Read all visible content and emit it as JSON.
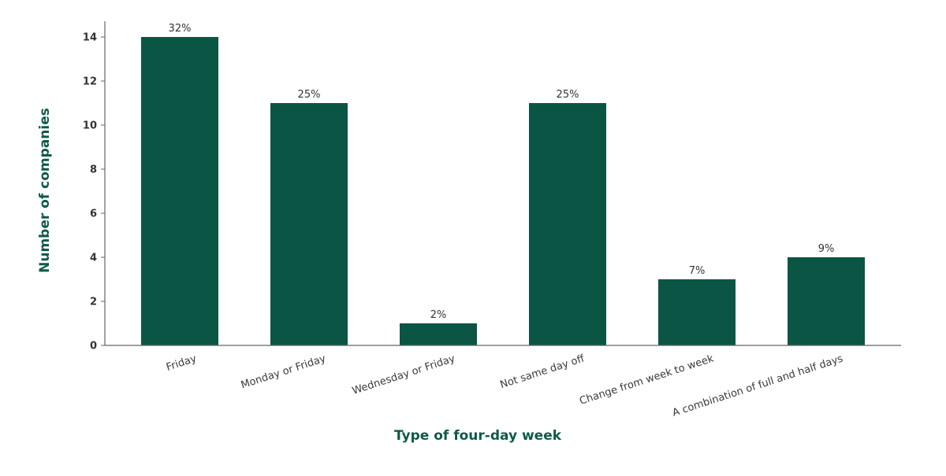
{
  "chart_data": {
    "type": "bar",
    "categories": [
      "Friday",
      "Monday or Friday",
      "Wednesday or Friday",
      "Not same day off",
      "Change from week to week",
      "A combination of full and half days"
    ],
    "values": [
      14,
      11,
      1,
      11,
      3,
      4
    ],
    "data_labels": [
      "32%",
      "25%",
      "2%",
      "25%",
      "7%",
      "9%"
    ],
    "xlabel": "Type of four-day week",
    "ylabel": "Number of companies",
    "ylim": [
      0,
      14
    ],
    "yticks": [
      0,
      2,
      4,
      6,
      8,
      10,
      12,
      14
    ],
    "grid": false,
    "legend": "none",
    "colors": {
      "bar": "#0a5544",
      "axis_title": "#0e5a48",
      "axis_line": "#666666"
    }
  }
}
